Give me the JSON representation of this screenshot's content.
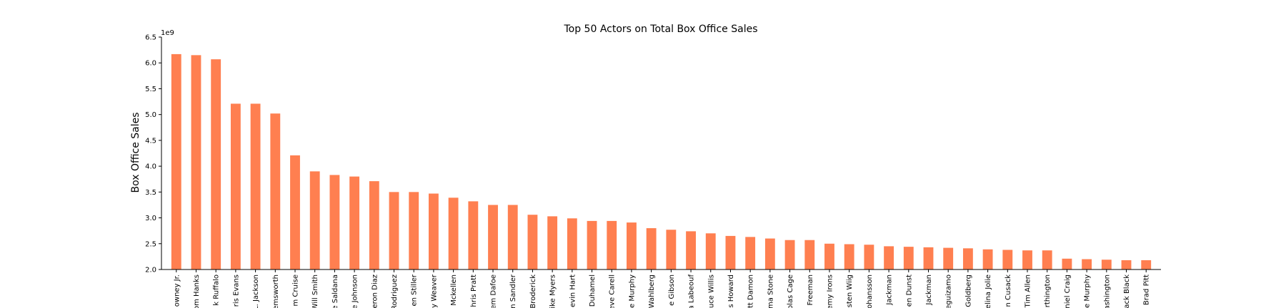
{
  "chart_data": {
    "type": "bar",
    "title": "Top 50 Actors on Total Box Office Sales",
    "xlabel": "",
    "ylabel": "Box Office Sales",
    "y_offset_label": "1e9",
    "ylim": [
      2.0,
      6.5
    ],
    "yticks": [
      "2.0",
      "2.5",
      "3.0",
      "3.5",
      "4.0",
      "4.5",
      "5.0",
      "5.5",
      "6.0",
      "6.5"
    ],
    "bar_color": "#ff7f50",
    "grid": false,
    "categories": [
      "owney Jr.",
      "om Hanks",
      "k Ruffalo",
      "ris Evans",
      "L. Jackson",
      "emsworth",
      "m Cruise",
      "Will Smith",
      "e Saldana",
      "e Johnson",
      "eron Diaz",
      "Rodriguez",
      "en Stiller",
      "y Weaver",
      "Mckellen",
      "hris Pratt",
      "em Dafoe",
      "n Sandler",
      "Broderick",
      "ike Myers",
      "evin Hart",
      "Duhamel",
      "eve Carell",
      "e Murphy",
      "Wahlberg",
      "e Gibson",
      "a Labeouf",
      "uce Willis",
      "s Howard",
      "tt Damon",
      "ma Stone",
      "olas Cage",
      "Freeman",
      "emy Irons",
      "sten Wiig",
      "ohansson",
      "Jackman",
      "en Dunst",
      "Jackman",
      "eguizamo",
      "Goldberg",
      "elina Jolie",
      "n Cusack",
      "Tim Allen",
      "rthington",
      "niel Craig",
      "e Murphy",
      "ashington",
      "ack Black",
      "Brad Pitt"
    ],
    "values": [
      6.17,
      6.15,
      6.07,
      5.21,
      5.21,
      5.02,
      4.21,
      3.9,
      3.83,
      3.8,
      3.71,
      3.5,
      3.5,
      3.47,
      3.39,
      3.32,
      3.25,
      3.25,
      3.06,
      3.03,
      2.99,
      2.94,
      2.94,
      2.91,
      2.8,
      2.77,
      2.74,
      2.7,
      2.65,
      2.63,
      2.6,
      2.57,
      2.57,
      2.5,
      2.49,
      2.48,
      2.45,
      2.44,
      2.43,
      2.42,
      2.41,
      2.39,
      2.38,
      2.37,
      2.37,
      2.21,
      2.2,
      2.19,
      2.18,
      2.18
    ]
  }
}
